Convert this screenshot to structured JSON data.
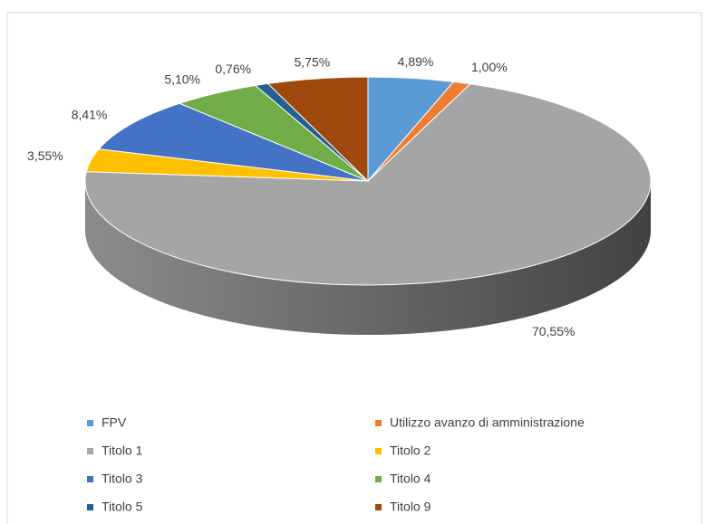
{
  "chart_data": {
    "type": "pie",
    "categories": [
      "FPV",
      "Utilizzo avanzo di amministrazione",
      "Titolo 1",
      "Titolo 2",
      "Titolo 3",
      "Titolo 4",
      "Titolo 5",
      "Titolo 9"
    ],
    "values": [
      4.89,
      1.0,
      70.55,
      3.55,
      8.41,
      5.1,
      0.76,
      5.75
    ],
    "value_labels": [
      "4,89%",
      "1,00%",
      "70,55%",
      "3,55%",
      "8,41%",
      "5,10%",
      "0,76%",
      "5,75%"
    ],
    "colors": [
      "#5b9bd5",
      "#ed7d31",
      "#a5a5a5",
      "#ffc000",
      "#4472c4",
      "#70ad47",
      "#255e91",
      "#9e480e"
    ],
    "legend": "bottom"
  }
}
